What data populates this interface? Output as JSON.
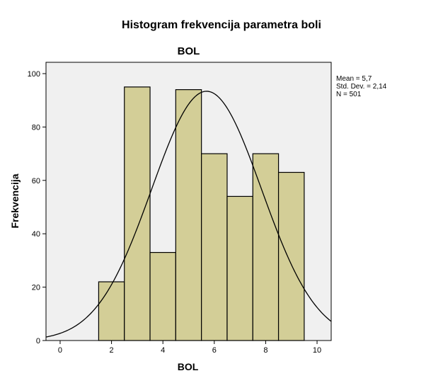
{
  "figure_title": "Histogram frekvencija parametra boli",
  "colors": {
    "plot_background": "#f0f0f0",
    "bar_fill": "#d3ce97",
    "bar_stroke": "#000000",
    "curve": "#000000"
  },
  "chart_data": {
    "type": "bar",
    "title": "BOL",
    "xlabel": "BOL",
    "ylabel": "Frekvencija",
    "bin_width": 1,
    "bins": [
      {
        "center": 2,
        "value": 22
      },
      {
        "center": 3,
        "value": 95
      },
      {
        "center": 4,
        "value": 33
      },
      {
        "center": 5,
        "value": 94
      },
      {
        "center": 6,
        "value": 70
      },
      {
        "center": 7,
        "value": 54
      },
      {
        "center": 8,
        "value": 70
      },
      {
        "center": 9,
        "value": 63
      }
    ],
    "xlim": [
      -0.55,
      10.55
    ],
    "ylim": [
      0,
      100
    ],
    "xticks": [
      0,
      2,
      4,
      6,
      8,
      10
    ],
    "yticks": [
      0,
      20,
      40,
      60,
      80,
      100
    ],
    "normal_curve": {
      "mean": 5.7,
      "std": 2.14,
      "n": 501
    },
    "stats_text": [
      "Mean = 5,7",
      "Std. Dev. = 2,14",
      "N = 501"
    ],
    "grid": false,
    "legend": "none"
  }
}
